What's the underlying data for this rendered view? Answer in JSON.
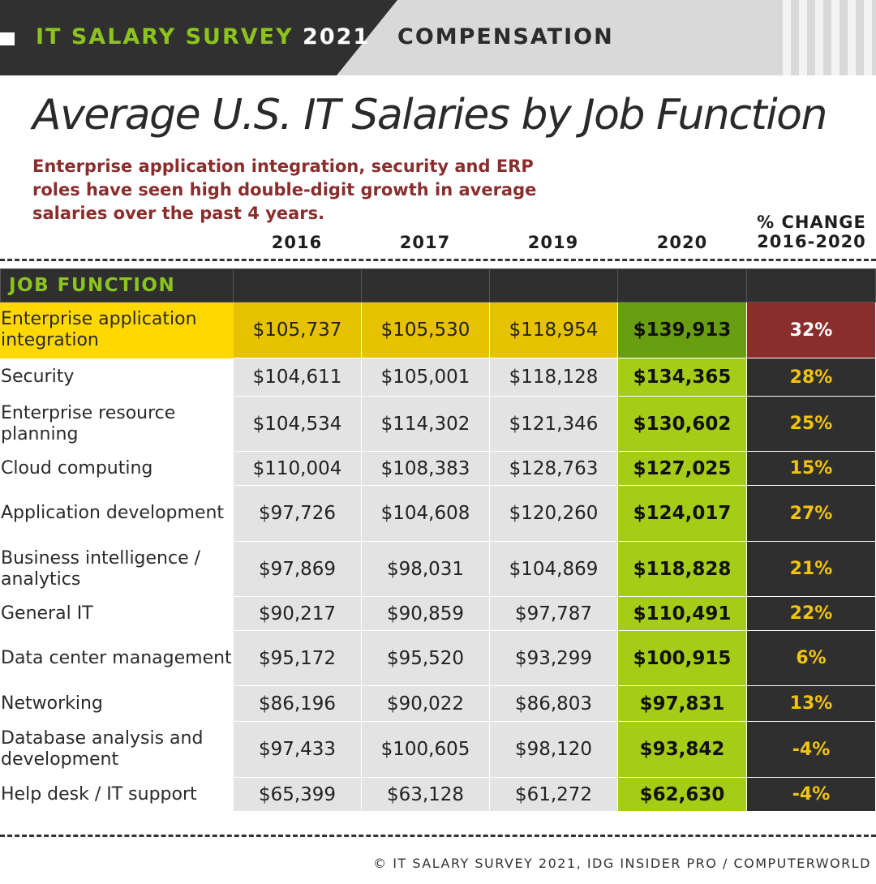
{
  "header": {
    "survey_green": "IT SALARY SURVEY",
    "survey_year": "2021",
    "section": "COMPENSATION",
    "colors": {
      "green": "#8cc31e",
      "dark": "#303030"
    }
  },
  "title": "Average U.S. IT Salaries by Job Function",
  "subtitle": "Enterprise application integration, security and ERP roles have seen high double-digit growth in average salaries over the past 4 years.",
  "chart_data": {
    "type": "table",
    "title": "Average U.S. IT Salaries by Job Function",
    "subtitle": "Enterprise application integration, security and ERP roles have seen high double-digit growth in average salaries over the past 4 years.",
    "row_header": "JOB FUNCTION",
    "columns": [
      "2016",
      "2017",
      "2019",
      "2020",
      "% CHANGE 2016-2020"
    ],
    "highlight_row": 0,
    "colors": {
      "highlight": "#ffd800",
      "col_2020": "#a5cc16",
      "pct_text": "#f1c40f",
      "pct_highlight": "#8a2d2d"
    },
    "rows": [
      {
        "function": "Enterprise application integration",
        "values": [
          "$105,737",
          "$105,530",
          "$118,954",
          "$139,913",
          "32%"
        ]
      },
      {
        "function": "Security",
        "values": [
          "$104,611",
          "$105,001",
          "$118,128",
          "$134,365",
          "28%"
        ]
      },
      {
        "function": "Enterprise resource planning",
        "values": [
          "$104,534",
          "$114,302",
          "$121,346",
          "$130,602",
          "25%"
        ]
      },
      {
        "function": "Cloud computing",
        "values": [
          "$110,004",
          "$108,383",
          "$128,763",
          "$127,025",
          "15%"
        ]
      },
      {
        "function": "Application development",
        "values": [
          "$97,726",
          "$104,608",
          "$120,260",
          "$124,017",
          "27%"
        ]
      },
      {
        "function": "Business intelligence / analytics",
        "values": [
          "$97,869",
          "$98,031",
          "$104,869",
          "$118,828",
          "21%"
        ]
      },
      {
        "function": "General IT",
        "values": [
          "$90,217",
          "$90,859",
          "$97,787",
          "$110,491",
          "22%"
        ]
      },
      {
        "function": "Data center management",
        "values": [
          "$95,172",
          "$95,520",
          "$93,299",
          "$100,915",
          "6%"
        ]
      },
      {
        "function": "Networking",
        "values": [
          "$86,196",
          "$90,022",
          "$86,803",
          "$97,831",
          "13%"
        ]
      },
      {
        "function": "Database analysis and development",
        "values": [
          "$97,433",
          "$100,605",
          "$98,120",
          "$93,842",
          "-4%"
        ]
      },
      {
        "function": "Help desk / IT support",
        "values": [
          "$65,399",
          "$63,128",
          "$61,272",
          "$62,630",
          "-4%"
        ]
      }
    ]
  },
  "footer": "© IT SALARY SURVEY 2021, IDG INSIDER PRO / COMPUTERWORLD"
}
